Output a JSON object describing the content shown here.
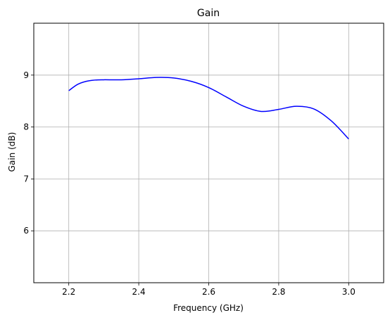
{
  "chart_data": {
    "type": "line",
    "title": "Gain",
    "xlabel": "Frequency (GHz)",
    "ylabel": "Gain (dB)",
    "xlim": [
      2.1,
      3.1
    ],
    "ylim": [
      5.0,
      10.0
    ],
    "xticks": [
      2.2,
      2.4,
      2.6,
      2.8,
      3.0
    ],
    "xtick_labels": [
      "2.2",
      "2.4",
      "2.6",
      "2.8",
      "3.0"
    ],
    "yticks": [
      6,
      7,
      8,
      9
    ],
    "ytick_labels": [
      "6",
      "7",
      "8",
      "9"
    ],
    "grid": true,
    "colors": {
      "series": "#0000ff",
      "grid": "#b0b0b0",
      "axes": "#000000"
    },
    "series": [
      {
        "x": [
          2.2,
          2.225,
          2.25,
          2.275,
          2.3,
          2.35,
          2.4,
          2.45,
          2.5,
          2.55,
          2.6,
          2.65,
          2.7,
          2.75,
          2.8,
          2.85,
          2.9,
          2.95,
          3.0
        ],
        "values": [
          8.7,
          8.82,
          8.88,
          8.905,
          8.91,
          8.91,
          8.93,
          8.955,
          8.945,
          8.88,
          8.76,
          8.58,
          8.4,
          8.3,
          8.34,
          8.4,
          8.35,
          8.12,
          7.77
        ]
      }
    ]
  }
}
